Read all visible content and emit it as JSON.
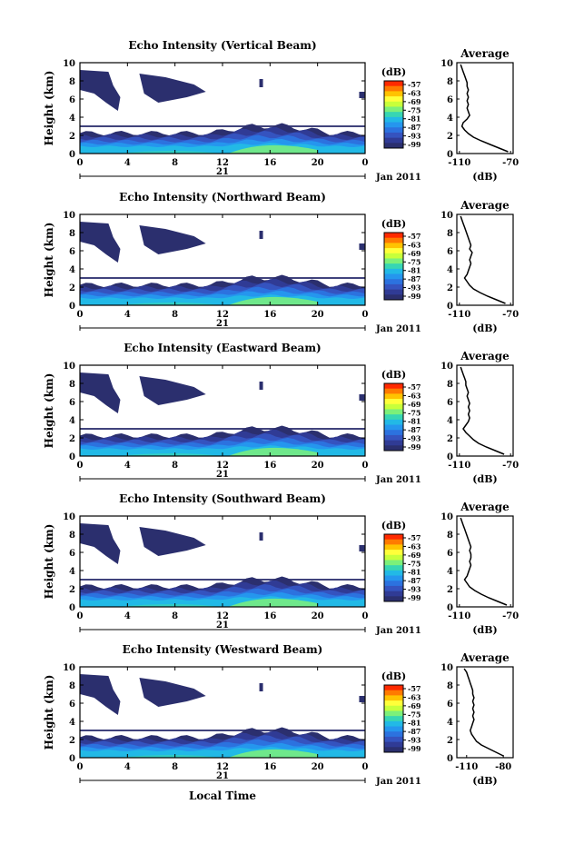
{
  "figure": {
    "xlabel_bottom": "Local Time",
    "colors": {
      "outline": "#000000",
      "background": "#ffffff",
      "navy": "#2b2f6e"
    }
  },
  "colorbar": {
    "unit": "(dB)",
    "ticks": [
      "-57",
      "-63",
      "-69",
      "-75",
      "-81",
      "-87",
      "-93",
      "-99"
    ],
    "colors": [
      "#ff2a00",
      "#ff7a00",
      "#ffc300",
      "#ffff3a",
      "#c8ff3a",
      "#7cf07a",
      "#37d6b3",
      "#22b9e6",
      "#2596ee",
      "#2c72df",
      "#3553bf",
      "#303b95",
      "#2b2f6e"
    ]
  },
  "chart_data": [
    {
      "type": "heatmap",
      "title": "Echo Intensity (Vertical Beam)",
      "ylabel": "Height (km)",
      "xlim": [
        0,
        24
      ],
      "ylim": [
        0,
        10
      ],
      "x_ticks": [
        "0",
        "4",
        "8",
        "12",
        "16",
        "20",
        "0"
      ],
      "y_ticks": [
        "0",
        "2",
        "4",
        "6",
        "8",
        "10"
      ],
      "date_day": "21",
      "date_month": "Jan 2011",
      "color_unit": "dB",
      "color_range": [
        -99,
        -57
      ],
      "profile": {
        "title": "Average",
        "xlabel": "(dB)",
        "x_ticks": [
          "-110",
          "-70"
        ],
        "xlim": [
          -112,
          -68
        ],
        "y_ticks": [
          "0",
          "2",
          "4",
          "6",
          "8",
          "10"
        ],
        "ylim": [
          0,
          10
        ],
        "height_km": [
          0.2,
          0.6,
          1.0,
          1.4,
          1.8,
          2.2,
          2.6,
          3.0,
          3.4,
          3.8,
          4.2,
          4.6,
          5.0,
          5.4,
          5.8,
          6.2,
          6.6,
          7.0,
          7.4,
          7.8,
          8.2,
          8.6,
          9.0,
          9.4,
          9.8
        ],
        "value_db": [
          -72,
          -79,
          -86,
          -93,
          -99,
          -103,
          -106,
          -108,
          -107,
          -104,
          -102,
          -103,
          -104,
          -103,
          -104,
          -103,
          -104,
          -103,
          -104,
          -104,
          -105,
          -106,
          -107,
          -108,
          -109
        ]
      }
    },
    {
      "type": "heatmap",
      "title": "Echo Intensity (Northward Beam)",
      "ylabel": "Height (km)",
      "xlim": [
        0,
        24
      ],
      "ylim": [
        0,
        10
      ],
      "x_ticks": [
        "0",
        "4",
        "8",
        "12",
        "16",
        "20",
        "0"
      ],
      "y_ticks": [
        "0",
        "2",
        "4",
        "6",
        "8",
        "10"
      ],
      "date_day": "21",
      "date_month": "Jan 2011",
      "color_unit": "dB",
      "color_range": [
        -99,
        -57
      ],
      "profile": {
        "title": "Average",
        "xlabel": "(dB)",
        "x_ticks": [
          "-110",
          "-70"
        ],
        "xlim": [
          -112,
          -68
        ],
        "y_ticks": [
          "0",
          "2",
          "4",
          "6",
          "8",
          "10"
        ],
        "ylim": [
          0,
          10
        ],
        "height_km": [
          0.2,
          0.6,
          1.0,
          1.4,
          1.8,
          2.2,
          2.6,
          3.0,
          3.4,
          3.8,
          4.2,
          4.6,
          5.0,
          5.4,
          5.8,
          6.2,
          6.6,
          7.0,
          7.4,
          7.8,
          8.2,
          8.6,
          9.0,
          9.4,
          9.8
        ],
        "value_db": [
          -74,
          -81,
          -88,
          -94,
          -99,
          -102,
          -104,
          -106,
          -104,
          -103,
          -102,
          -101,
          -102,
          -101,
          -100,
          -102,
          -101,
          -102,
          -103,
          -104,
          -105,
          -106,
          -107,
          -108,
          -109
        ]
      }
    },
    {
      "type": "heatmap",
      "title": "Echo Intensity (Eastward Beam)",
      "ylabel": "Height (km)",
      "xlim": [
        0,
        24
      ],
      "ylim": [
        0,
        10
      ],
      "x_ticks": [
        "0",
        "4",
        "8",
        "12",
        "16",
        "20",
        "0"
      ],
      "y_ticks": [
        "0",
        "2",
        "4",
        "6",
        "8",
        "10"
      ],
      "date_day": "21",
      "date_month": "Jan 2011",
      "color_unit": "dB",
      "color_range": [
        -99,
        -57
      ],
      "profile": {
        "title": "Average",
        "xlabel": "(dB)",
        "x_ticks": [
          "-110",
          "-70"
        ],
        "xlim": [
          -112,
          -68
        ],
        "y_ticks": [
          "0",
          "2",
          "4",
          "6",
          "8",
          "10"
        ],
        "ylim": [
          0,
          10
        ],
        "height_km": [
          0.2,
          0.6,
          1.0,
          1.4,
          1.8,
          2.2,
          2.6,
          3.0,
          3.4,
          3.8,
          4.2,
          4.6,
          5.0,
          5.4,
          5.8,
          6.2,
          6.6,
          7.0,
          7.4,
          7.8,
          8.2,
          8.6,
          9.0,
          9.4,
          9.8
        ],
        "value_db": [
          -75,
          -82,
          -89,
          -95,
          -99,
          -102,
          -105,
          -107,
          -105,
          -103,
          -102,
          -103,
          -102,
          -103,
          -102,
          -103,
          -104,
          -103,
          -104,
          -105,
          -105,
          -106,
          -107,
          -108,
          -109
        ]
      }
    },
    {
      "type": "heatmap",
      "title": "Echo Intensity (Southward Beam)",
      "ylabel": "Height (km)",
      "xlim": [
        0,
        24
      ],
      "ylim": [
        0,
        10
      ],
      "x_ticks": [
        "0",
        "4",
        "8",
        "12",
        "16",
        "20",
        "0"
      ],
      "y_ticks": [
        "0",
        "2",
        "4",
        "6",
        "8",
        "10"
      ],
      "date_day": "21",
      "date_month": "Jan 2011",
      "color_unit": "dB",
      "color_range": [
        -99,
        -57
      ],
      "profile": {
        "title": "Average",
        "xlabel": "(dB)",
        "x_ticks": [
          "-110",
          "-70"
        ],
        "xlim": [
          -112,
          -68
        ],
        "y_ticks": [
          "0",
          "2",
          "4",
          "6",
          "8",
          "10"
        ],
        "ylim": [
          0,
          10
        ],
        "height_km": [
          0.2,
          0.6,
          1.0,
          1.4,
          1.8,
          2.2,
          2.6,
          3.0,
          3.4,
          3.8,
          4.2,
          4.6,
          5.0,
          5.4,
          5.8,
          6.2,
          6.6,
          7.0,
          7.4,
          7.8,
          8.2,
          8.6,
          9.0,
          9.4,
          9.8
        ],
        "value_db": [
          -73,
          -80,
          -87,
          -93,
          -98,
          -102,
          -104,
          -106,
          -104,
          -103,
          -102,
          -101,
          -102,
          -101,
          -101,
          -102,
          -101,
          -102,
          -103,
          -104,
          -105,
          -106,
          -107,
          -108,
          -109
        ]
      }
    },
    {
      "type": "heatmap",
      "title": "Echo Intensity (Westward Beam)",
      "ylabel": "Height (km)",
      "xlim": [
        0,
        24
      ],
      "ylim": [
        0,
        10
      ],
      "x_ticks": [
        "0",
        "4",
        "8",
        "12",
        "16",
        "20",
        "0"
      ],
      "y_ticks": [
        "0",
        "2",
        "4",
        "6",
        "8",
        "10"
      ],
      "date_day": "21",
      "date_month": "Jan 2011",
      "color_unit": "dB",
      "color_range": [
        -99,
        -57
      ],
      "profile": {
        "title": "Average",
        "xlabel": "(dB)",
        "x_ticks": [
          "-110",
          "-80"
        ],
        "xlim": [
          -118,
          -72
        ],
        "y_ticks": [
          "0",
          "2",
          "4",
          "6",
          "8",
          "10"
        ],
        "ylim": [
          0,
          10
        ],
        "height_km": [
          0.2,
          0.6,
          1.0,
          1.4,
          1.8,
          2.2,
          2.6,
          3.0,
          3.4,
          3.8,
          4.2,
          4.6,
          5.0,
          5.4,
          5.8,
          6.2,
          6.6,
          7.0,
          7.4,
          7.8,
          8.2,
          8.6,
          9.0,
          9.4,
          9.8
        ],
        "value_db": [
          -80,
          -86,
          -92,
          -98,
          -102,
          -104,
          -106,
          -107,
          -106,
          -105,
          -104,
          -105,
          -104,
          -105,
          -104,
          -105,
          -104,
          -105,
          -105,
          -106,
          -107,
          -108,
          -109,
          -110,
          -112
        ]
      }
    }
  ]
}
